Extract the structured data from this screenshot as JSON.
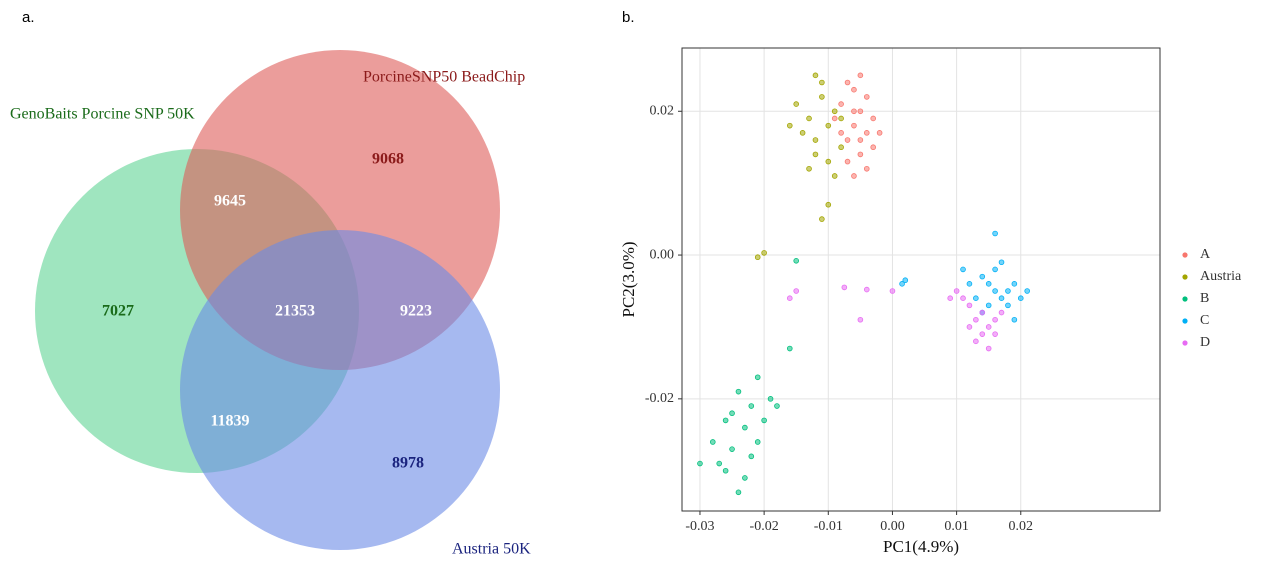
{
  "chart_data": [
    {
      "type": "venn",
      "panel": "a.",
      "sets": [
        {
          "name": "GenoBaits Porcine SNP 50K",
          "color": "#5fd395",
          "label_color": "#1a6b1a"
        },
        {
          "name": "PorcineSNP50 BeadChip",
          "color": "#dd5b58",
          "label_color": "#8b1a1a"
        },
        {
          "name": "Austria 50K",
          "color": "#6a8ae6",
          "label_color": "#1a237e"
        }
      ],
      "regions": [
        {
          "sets": [
            1
          ],
          "value": 9068
        },
        {
          "sets": [
            0,
            1
          ],
          "value": 9645
        },
        {
          "sets": [
            0
          ],
          "value": 7027
        },
        {
          "sets": [
            0,
            1,
            2
          ],
          "value": 21353
        },
        {
          "sets": [
            1,
            2
          ],
          "value": 9223
        },
        {
          "sets": [
            0,
            2
          ],
          "value": 11839
        },
        {
          "sets": [
            2
          ],
          "value": 8978
        }
      ]
    },
    {
      "type": "scatter",
      "panel": "b.",
      "x_label": "PC1(4.9%)",
      "y_label": "PC2(3.0%)",
      "xlim": [
        -0.0328,
        0.0417
      ],
      "ylim": [
        -0.0356,
        0.0288
      ],
      "xticks": [
        {
          "value": -0.03,
          "label": "-0.03"
        },
        {
          "value": -0.02,
          "label": "-0.02"
        },
        {
          "value": -0.01,
          "label": "-0.01"
        },
        {
          "value": 0,
          "label": "0.00"
        },
        {
          "value": 0.01,
          "label": "0.01"
        },
        {
          "value": 0.02,
          "label": "0.02"
        }
      ],
      "yticks": [
        {
          "value": -0.02,
          "label": "-0.02"
        },
        {
          "value": 0,
          "label": "0.00"
        },
        {
          "value": 0.02,
          "label": "0.02"
        }
      ],
      "grid": true,
      "legend": "right",
      "series": [
        {
          "name": "A",
          "color": "#F8766D",
          "x": [
            -0.006,
            -0.005,
            -0.007,
            -0.004,
            -0.006,
            -0.005,
            -0.003,
            -0.008,
            -0.007,
            -0.004,
            -0.002,
            -0.006,
            -0.005,
            -0.009,
            -0.003,
            -0.007,
            -0.004,
            -0.006,
            -0.008,
            -0.005
          ],
          "values": [
            0.018,
            0.02,
            0.016,
            0.017,
            0.023,
            0.014,
            0.019,
            0.021,
            0.013,
            0.022,
            0.017,
            0.011,
            0.025,
            0.019,
            0.015,
            0.024,
            0.012,
            0.02,
            0.017,
            0.016
          ]
        },
        {
          "name": "Austria",
          "color": "#A3A500",
          "x": [
            -0.01,
            -0.012,
            -0.009,
            -0.011,
            -0.013,
            -0.008,
            -0.01,
            -0.014,
            -0.011,
            -0.009,
            -0.012,
            -0.015,
            -0.01,
            -0.008,
            -0.013,
            -0.011,
            -0.016,
            -0.012,
            -0.021,
            -0.02
          ],
          "values": [
            0.018,
            0.016,
            0.02,
            0.022,
            0.019,
            0.015,
            0.013,
            0.017,
            0.024,
            0.011,
            0.014,
            0.021,
            0.007,
            0.019,
            0.012,
            0.005,
            0.018,
            0.025,
            -0.0003,
            0.0003
          ]
        },
        {
          "name": "B",
          "color": "#00BF7D",
          "x": [
            -0.023,
            -0.025,
            -0.022,
            -0.026,
            -0.021,
            -0.024,
            -0.027,
            -0.02,
            -0.023,
            -0.028,
            -0.019,
            -0.025,
            -0.022,
            -0.03,
            -0.021,
            -0.024,
            -0.018,
            -0.026,
            -0.015,
            -0.016
          ],
          "values": [
            -0.024,
            -0.027,
            -0.021,
            -0.023,
            -0.026,
            -0.019,
            -0.029,
            -0.023,
            -0.031,
            -0.026,
            -0.02,
            -0.022,
            -0.028,
            -0.029,
            -0.017,
            -0.033,
            -0.021,
            -0.03,
            -0.0008,
            -0.013
          ]
        },
        {
          "name": "C",
          "color": "#00B0F6",
          "x": [
            0.016,
            0.015,
            0.017,
            0.014,
            0.018,
            0.013,
            0.019,
            0.016,
            0.015,
            0.02,
            0.012,
            0.017,
            0.021,
            0.014,
            0.018,
            0.011,
            0.016,
            0.019,
            0.002,
            0.0015
          ],
          "values": [
            -0.005,
            -0.004,
            -0.006,
            -0.003,
            -0.005,
            -0.006,
            -0.004,
            -0.002,
            -0.007,
            -0.006,
            -0.004,
            -0.001,
            -0.005,
            -0.008,
            -0.007,
            -0.002,
            0.003,
            -0.009,
            -0.0035,
            -0.004
          ]
        },
        {
          "name": "D",
          "color": "#E76BF3",
          "x": [
            0.014,
            0.013,
            0.015,
            0.012,
            0.016,
            0.011,
            0.014,
            0.017,
            0.013,
            0.01,
            0.015,
            0.012,
            0.009,
            0.016,
            -0.016,
            -0.015,
            -0.0075,
            -0.004,
            -0.005,
            0.0
          ],
          "values": [
            -0.008,
            -0.009,
            -0.01,
            -0.007,
            -0.009,
            -0.006,
            -0.011,
            -0.008,
            -0.012,
            -0.005,
            -0.013,
            -0.01,
            -0.006,
            -0.011,
            -0.006,
            -0.005,
            -0.0045,
            -0.0048,
            -0.009,
            -0.005
          ]
        }
      ]
    }
  ]
}
